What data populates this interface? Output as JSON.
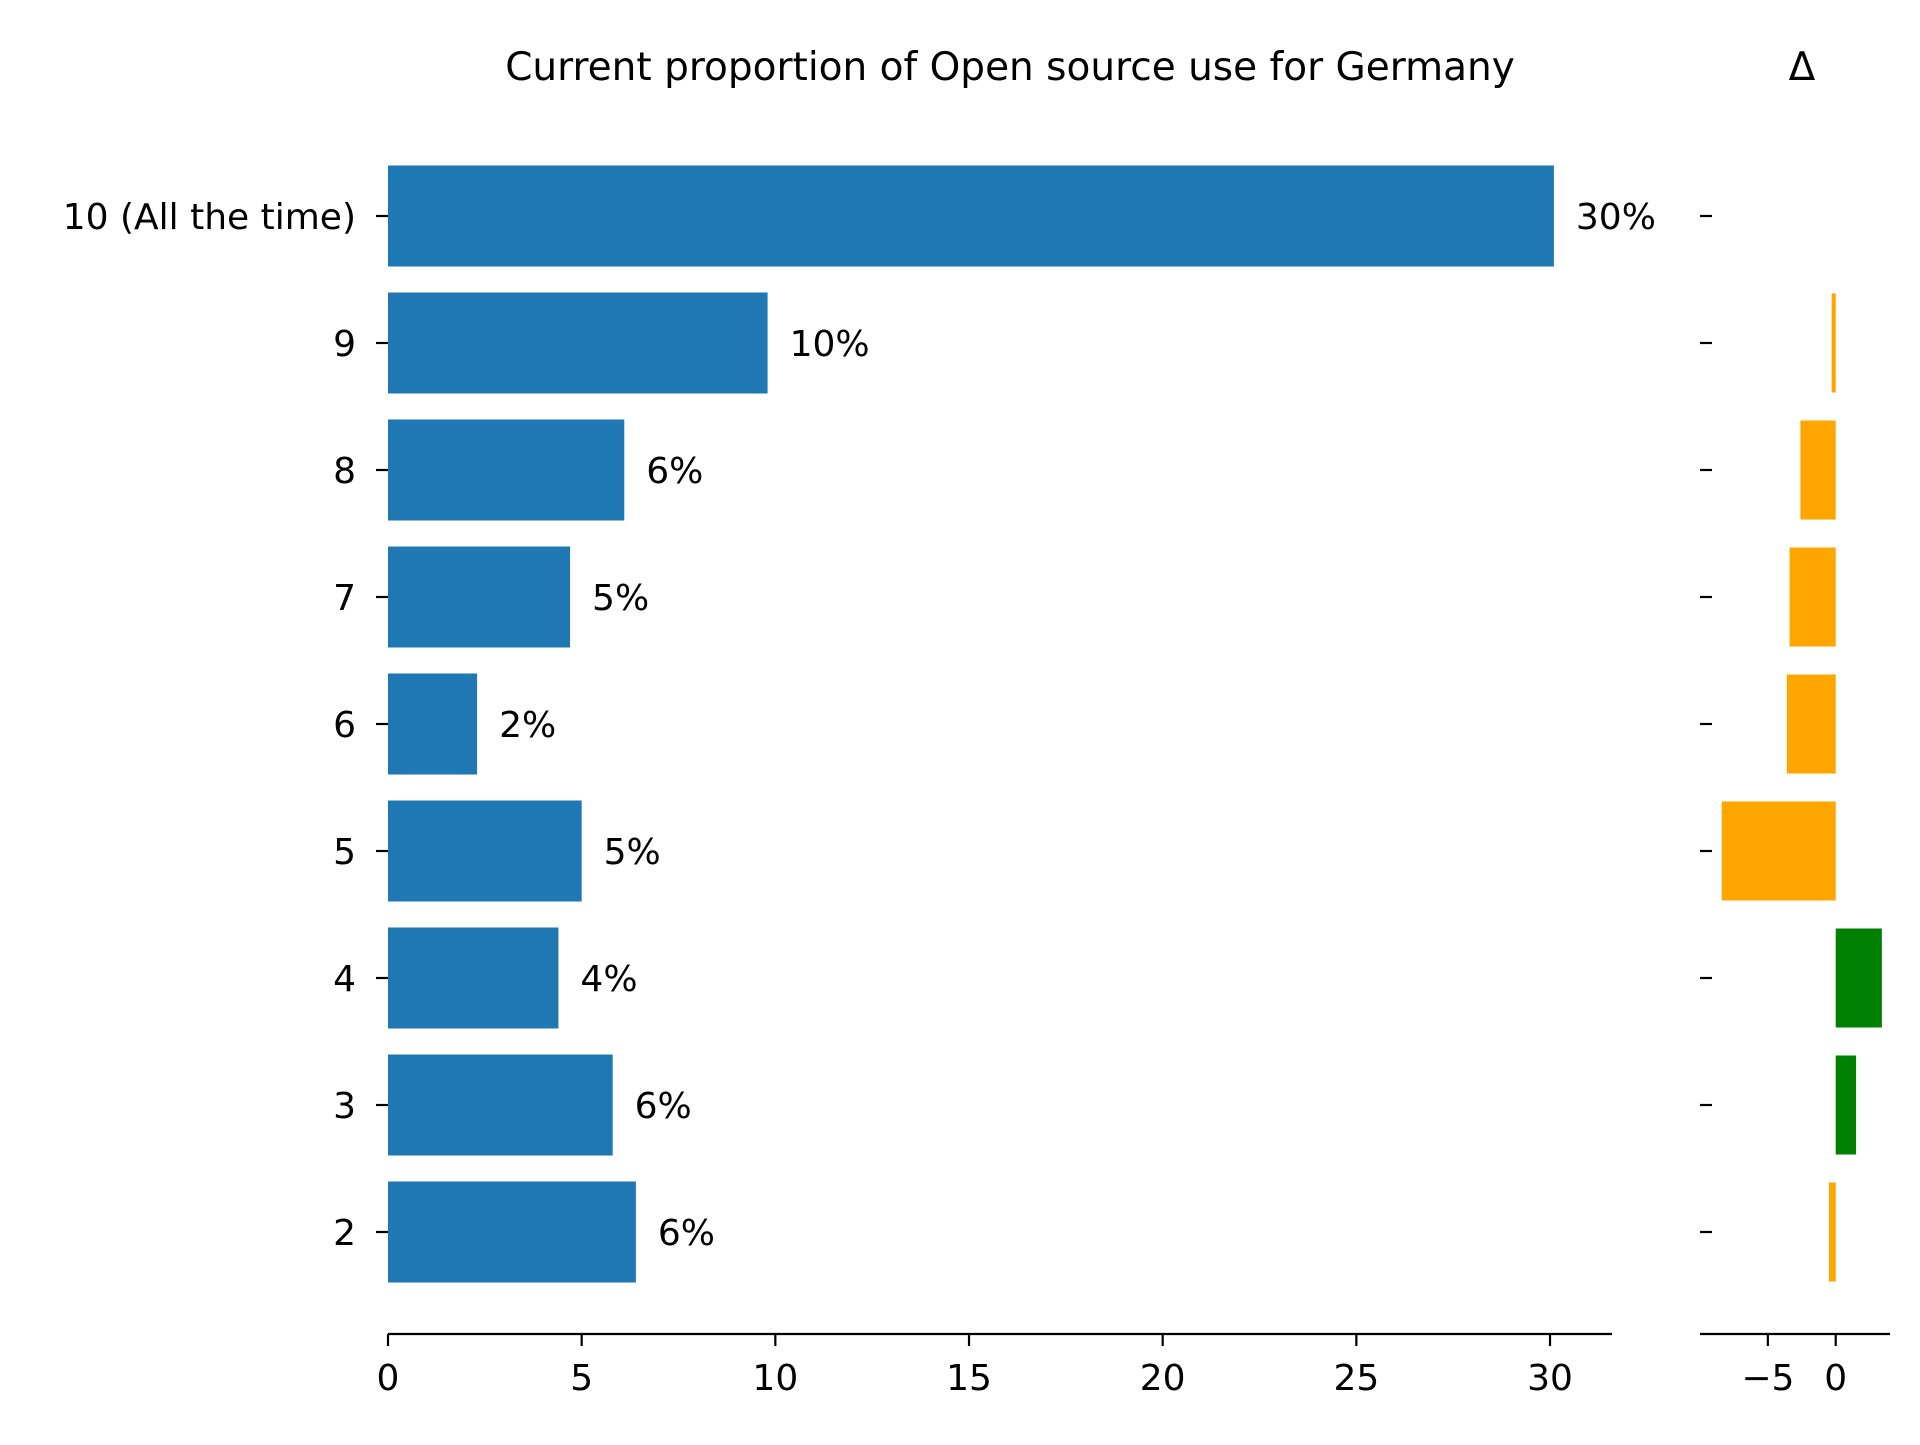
{
  "chart_data": {
    "type": "bar",
    "orientation": "horizontal",
    "title": "Current proportion of Open source use for Germany",
    "categories": [
      "10 (All the time)",
      "9",
      "8",
      "7",
      "6",
      "5",
      "4",
      "3",
      "2"
    ],
    "values": [
      30.1,
      9.8,
      6.1,
      4.7,
      2.3,
      5.0,
      4.4,
      5.8,
      6.4
    ],
    "value_labels": [
      "30%",
      "10%",
      "6%",
      "5%",
      "2%",
      "5%",
      "4%",
      "6%",
      "6%"
    ],
    "xlim": [
      0,
      31.6
    ],
    "xticks": [
      "0",
      "5",
      "10",
      "15",
      "20",
      "25",
      "30"
    ],
    "xtick_values": [
      0,
      5,
      10,
      15,
      20,
      25,
      30
    ],
    "grid": false,
    "bar_color": "#1f77b4",
    "delta": {
      "title": "Δ",
      "values": [
        0,
        -0.3,
        -2.6,
        -3.4,
        -3.6,
        -8.4,
        3.4,
        1.5,
        -0.5
      ],
      "xlim": [
        -10,
        4
      ],
      "xticks": [
        "−5",
        "0"
      ],
      "xtick_values": [
        -5,
        0
      ],
      "negative_color": "#ffa500",
      "positive_color": "#008000"
    }
  }
}
